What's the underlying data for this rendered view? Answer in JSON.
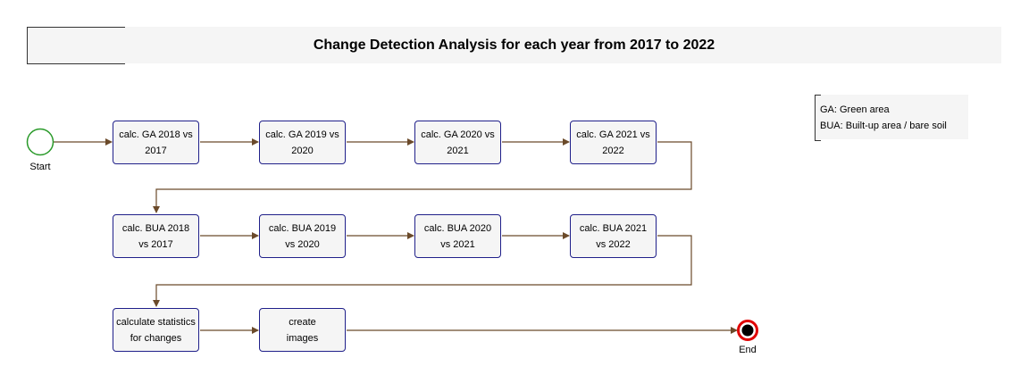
{
  "title": "Change Detection Analysis for each year from 2017 to 2022",
  "legend": [
    "GA: Green area",
    "BUA: Built-up area / bare soil"
  ],
  "start_label": "Start",
  "end_label": "End",
  "colors": {
    "flow": "#6b4a2a",
    "task_border": "#20208a",
    "start": "#2a9a2a",
    "end": "#e00000"
  },
  "rows": [
    {
      "tasks": [
        {
          "line1": "calc. GA 2018 vs",
          "line2": "2017"
        },
        {
          "line1": "calc. GA 2019 vs",
          "line2": "2020"
        },
        {
          "line1": "calc. GA 2020 vs",
          "line2": "2021"
        },
        {
          "line1": "calc. GA 2021 vs",
          "line2": "2022"
        }
      ]
    },
    {
      "tasks": [
        {
          "line1": "calc. BUA 2018",
          "line2": "vs 2017"
        },
        {
          "line1": "calc. BUA 2019",
          "line2": "vs 2020"
        },
        {
          "line1": "calc. BUA 2020",
          "line2": "vs 2021"
        },
        {
          "line1": "calc. BUA 2021",
          "line2": "vs 2022"
        }
      ]
    },
    {
      "tasks": [
        {
          "line1": "calculate statistics",
          "line2": "for changes"
        },
        {
          "line1": "create",
          "line2": "images"
        }
      ]
    }
  ]
}
